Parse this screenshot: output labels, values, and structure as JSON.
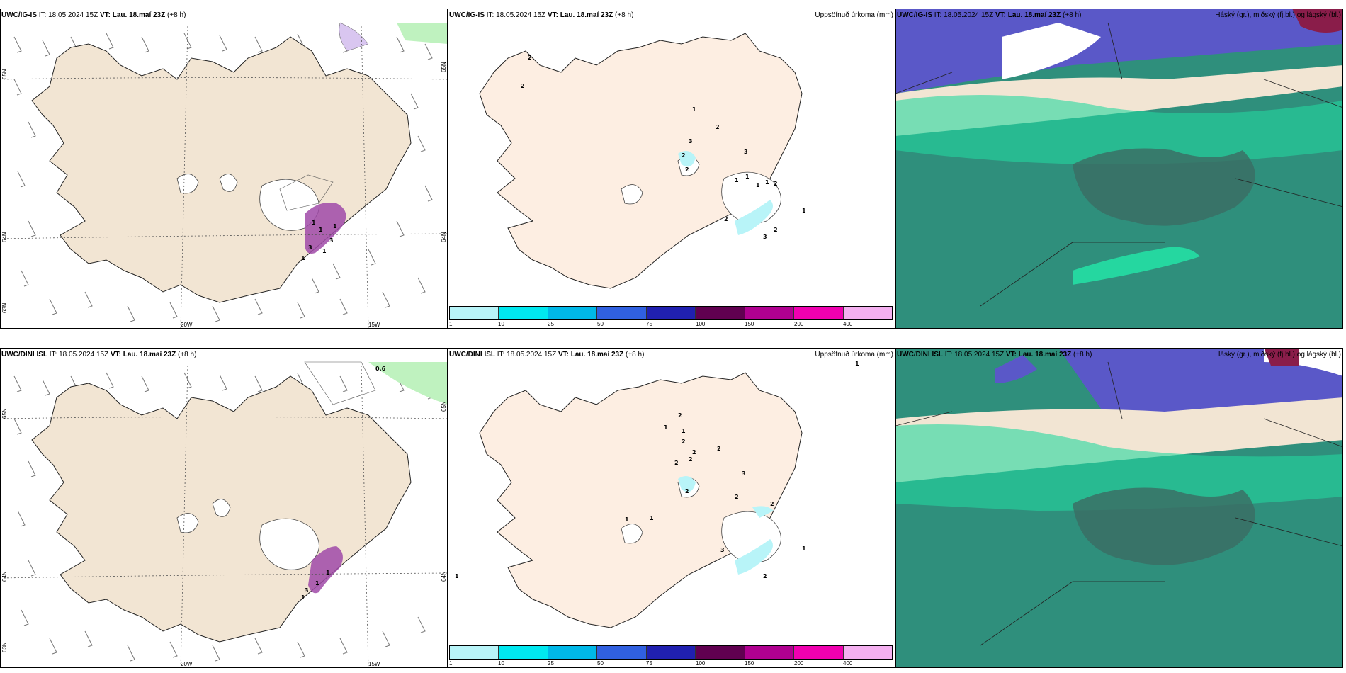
{
  "rows": [
    {
      "model": "UWC/IG-IS",
      "it_label": "IT:",
      "it": "18.05.2024 15Z",
      "vt_label": "VT:",
      "vt": "Lau. 18.maí 23Z",
      "lead": "(+8 h)",
      "lat_labels": [
        "65N",
        "64N",
        "63N"
      ],
      "lon_labels": [
        "20W",
        "15W"
      ],
      "wind_values": [
        "3",
        "3",
        "1",
        "1",
        "1",
        "1",
        "1"
      ],
      "precip_values": [
        "2",
        "2",
        "1",
        "3",
        "2",
        "3",
        "2",
        "2",
        "1",
        "1",
        "1",
        "2",
        "1",
        "2",
        "1",
        "3",
        "2"
      ]
    },
    {
      "model": "UWC/DINI ISL",
      "it_label": "IT:",
      "it": "18.05.2024 15Z",
      "vt_label": "VT:",
      "vt": "Lau. 18.maí 23Z",
      "lead": "(+8 h)",
      "lat_labels": [
        "65N",
        "64N",
        "63N"
      ],
      "lon_labels": [
        "20W",
        "15W"
      ],
      "wind_values": [
        "0.6",
        "3",
        "1",
        "1",
        "1"
      ],
      "precip_values": [
        "1",
        "1",
        "2",
        "1",
        "1",
        "2",
        "2",
        "2",
        "2",
        "2",
        "3",
        "2",
        "2",
        "2",
        "3",
        "2",
        "1",
        "1",
        "1"
      ]
    }
  ],
  "precip_title": "Uppsöfnuð úrkoma (mm)",
  "cloud_title": "Háský (gr.), miðský (fj.bl.) og lágský (bl.)",
  "colorbar": {
    "labels": [
      "1",
      "10",
      "25",
      "50",
      "75",
      "100",
      "150",
      "200",
      "400"
    ],
    "colors": [
      "#b8f4f8",
      "#00e8f0",
      "#00b8e8",
      "#3060e0",
      "#2020b0",
      "#600050",
      "#b00090",
      "#f000b0",
      "#f4b0f0"
    ]
  },
  "colors": {
    "land": "#f2e5d3",
    "land_light": "#fdeee2",
    "cloud_high": "#5a58c8",
    "cloud_mid": "#25d7a0",
    "cloud_low": "#2f8f7c"
  }
}
